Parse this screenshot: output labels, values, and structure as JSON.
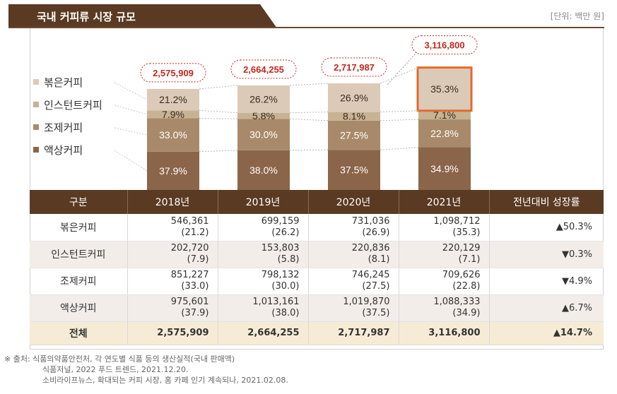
{
  "title": "국내 커피류 시장 규모",
  "unit": "[단위: 백만 원]",
  "colors": {
    "roasted": "#dccab8",
    "instant": "#c7b394",
    "prepared": "#a88a6a",
    "liquid": "#8b6549",
    "header": "#5a3a22",
    "callout": "#c0281e",
    "highlight": "#e46a2e"
  },
  "chart_data": {
    "type": "bar",
    "stacked": true,
    "categories": [
      "2018년",
      "2019년",
      "2020년",
      "2021년"
    ],
    "totals": [
      2575909,
      2664255,
      2717987,
      3116800
    ],
    "total_labels": [
      "2,575,909",
      "2,664,255",
      "2,717,987",
      "3,116,800"
    ],
    "series": [
      {
        "name": "액상커피",
        "color": "#8b6549",
        "shares": [
          37.9,
          38.0,
          37.5,
          34.9
        ],
        "labels": [
          "37.9%",
          "38.0%",
          "37.5%",
          "34.9%"
        ]
      },
      {
        "name": "조제커피",
        "color": "#a88a6a",
        "shares": [
          33.0,
          30.0,
          27.5,
          22.8
        ],
        "labels": [
          "33.0%",
          "30.0%",
          "27.5%",
          "22.8%"
        ]
      },
      {
        "name": "인스턴트커피",
        "color": "#c7b394",
        "shares": [
          7.9,
          5.8,
          8.1,
          7.1
        ],
        "labels": [
          "7.9%",
          "5.8%",
          "8.1%",
          "7.1%"
        ]
      },
      {
        "name": "볶은커피",
        "color": "#dccab8",
        "shares": [
          21.2,
          26.2,
          26.9,
          35.3
        ],
        "labels": [
          "21.2%",
          "26.2%",
          "26.9%",
          "35.3%"
        ]
      }
    ],
    "legend": [
      "볶은커피",
      "인스턴트커피",
      "조제커피",
      "액상커피"
    ],
    "legend_position": "left",
    "highlight_category": "2021년"
  },
  "table": {
    "headers": [
      "구분",
      "2018년",
      "2019년",
      "2020년",
      "2021년",
      "전년대비 성장률"
    ],
    "rows": [
      {
        "label": "볶은커피",
        "values": [
          "546,361",
          "699,159",
          "731,036",
          "1,098,712"
        ],
        "shares": [
          "(21.2)",
          "(26.2)",
          "(26.9)",
          "(35.3)"
        ],
        "growth": "▲50.3%"
      },
      {
        "label": "인스턴트커피",
        "values": [
          "202,720",
          "153,803",
          "220,836",
          "220,129"
        ],
        "shares": [
          "(7.9)",
          "(5.8)",
          "(8.1)",
          "(7.1)"
        ],
        "growth": "▼0.3%"
      },
      {
        "label": "조제커피",
        "values": [
          "851,227",
          "798,132",
          "746,245",
          "709,626"
        ],
        "shares": [
          "(33.0)",
          "(30.0)",
          "(27.5)",
          "(22.8)"
        ],
        "growth": "▼4.9%"
      },
      {
        "label": "액상커피",
        "values": [
          "975,601",
          "1,013,161",
          "1,019,870",
          "1,088,333"
        ],
        "shares": [
          "(37.9)",
          "(38.0)",
          "(37.5)",
          "(34.9)"
        ],
        "growth": "▲6.7%"
      }
    ],
    "total": {
      "label": "전체",
      "values": [
        "2,575,909",
        "2,664,255",
        "2,717,987",
        "3,116,800"
      ],
      "growth": "▲14.7%"
    }
  },
  "sources": [
    "※ 출처: 식품의약품안전처, 각 연도별 식품 등의 생산실적(국내 판매액)",
    "식품저널, 2022 푸드 트렌드, 2021.12.20.",
    "소비라이프뉴스, 확대되는 커피 시장, 홈 카페 인기 계속되나, 2021.02.08."
  ]
}
